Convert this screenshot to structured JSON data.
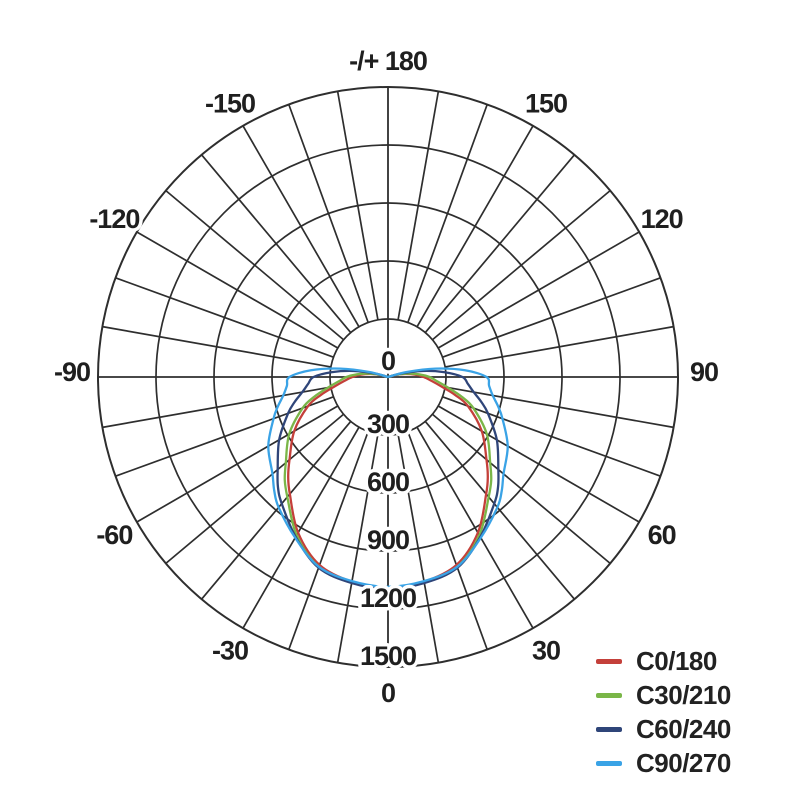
{
  "chart_data": {
    "type": "polar",
    "subtype": "photometric-luminous-intensity-distribution",
    "title": "",
    "background_color": "#ffffff",
    "grid": {
      "color": "#2e2e2e",
      "spoke_step_deg": 10,
      "ring_step_value": 300,
      "rings_visible": true
    },
    "radial_axis": {
      "center_label": "0",
      "ring_values": [
        300,
        600,
        900,
        1200,
        1500
      ],
      "range": [
        0,
        1500
      ]
    },
    "angle_ticks": [
      {
        "deg": 0,
        "label": "0"
      },
      {
        "deg": 30,
        "label": "30"
      },
      {
        "deg": 60,
        "label": "60"
      },
      {
        "deg": 90,
        "label": "90"
      },
      {
        "deg": 120,
        "label": "120"
      },
      {
        "deg": 150,
        "label": "150"
      },
      {
        "deg": 180,
        "label": "-/+ 180"
      },
      {
        "deg": -30,
        "label": "-30"
      },
      {
        "deg": -60,
        "label": "-60"
      },
      {
        "deg": -90,
        "label": "-90"
      },
      {
        "deg": -120,
        "label": "-120"
      },
      {
        "deg": -150,
        "label": "-150"
      }
    ],
    "angles_deg": [
      0,
      10,
      20,
      30,
      40,
      45,
      50,
      60,
      70,
      75,
      80,
      85,
      90,
      95,
      100,
      105,
      110
    ],
    "series": [
      {
        "name": "C0/180",
        "color": "#c4403a",
        "values": [
          1090,
          1075,
          1035,
          930,
          790,
          730,
          665,
          560,
          440,
          360,
          280,
          225,
          185,
          140,
          90,
          40,
          0
        ]
      },
      {
        "name": "C30/210",
        "color": "#7ab648",
        "values": [
          1090,
          1078,
          1045,
          945,
          810,
          755,
          690,
          590,
          470,
          395,
          315,
          255,
          215,
          160,
          100,
          45,
          0
        ]
      },
      {
        "name": "C60/240",
        "color": "#2f4579",
        "values": [
          1095,
          1082,
          1050,
          955,
          855,
          805,
          745,
          650,
          550,
          500,
          450,
          415,
          385,
          290,
          180,
          70,
          0
        ]
      },
      {
        "name": "C90/270",
        "color": "#3aa3e6",
        "values": [
          1085,
          1072,
          1045,
          960,
          880,
          832,
          780,
          715,
          630,
          590,
          550,
          525,
          510,
          400,
          250,
          100,
          0
        ]
      }
    ],
    "symmetric_mirror": true,
    "legend_position": "bottom-right"
  }
}
